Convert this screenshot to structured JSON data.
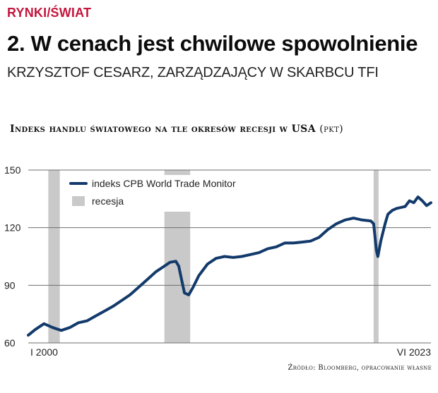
{
  "section": "RYNKI/ŚWIAT",
  "headline": "2. W cenach jest chwilowe spowolnienie",
  "author": "KRZYSZTOF CESARZ, ZARZĄDZAJĄCY W SKARBCU TFI",
  "source": "Źródło: Bloomberg, opracowanie własne",
  "chart_data": {
    "type": "line",
    "title": "Indeks handlu światowego na tle okresów recesji w USA",
    "unit": "(pkt)",
    "x_start": "2000-01",
    "x_end": "2023-06",
    "x_tick_labels": [
      "I 2000",
      "VI 2023"
    ],
    "y_ticks": [
      60,
      90,
      120,
      150
    ],
    "ylim": [
      60,
      150
    ],
    "grid": true,
    "legend_position": "top-left",
    "colors": {
      "series": "#123a6b",
      "recession": "#c9c9c9",
      "grid": "#6e6e6e"
    },
    "recessions": [
      {
        "name": "recesja",
        "start": "2001-03",
        "end": "2001-11"
      },
      {
        "name": "recesja",
        "start": "2007-12",
        "end": "2009-06"
      },
      {
        "name": "recesja",
        "start": "2020-02",
        "end": "2020-04"
      }
    ],
    "series": [
      {
        "name": "indeks CPB World Trade Monitor",
        "points": [
          [
            "2000-01",
            64
          ],
          [
            "2000-06",
            67
          ],
          [
            "2000-12",
            70
          ],
          [
            "2001-06",
            68
          ],
          [
            "2001-12",
            66.5
          ],
          [
            "2002-06",
            68
          ],
          [
            "2002-12",
            70.5
          ],
          [
            "2003-06",
            71.5
          ],
          [
            "2003-12",
            74
          ],
          [
            "2004-06",
            76.5
          ],
          [
            "2004-12",
            79
          ],
          [
            "2005-06",
            82
          ],
          [
            "2005-12",
            85
          ],
          [
            "2006-06",
            89
          ],
          [
            "2006-12",
            93
          ],
          [
            "2007-06",
            97
          ],
          [
            "2007-12",
            100
          ],
          [
            "2008-04",
            102
          ],
          [
            "2008-08",
            102.5
          ],
          [
            "2008-10",
            100
          ],
          [
            "2008-12",
            93
          ],
          [
            "2009-02",
            86
          ],
          [
            "2009-05",
            85
          ],
          [
            "2009-08",
            89
          ],
          [
            "2009-12",
            95
          ],
          [
            "2010-06",
            101
          ],
          [
            "2010-12",
            104
          ],
          [
            "2011-06",
            105
          ],
          [
            "2011-12",
            104.5
          ],
          [
            "2012-06",
            105
          ],
          [
            "2012-12",
            106
          ],
          [
            "2013-06",
            107
          ],
          [
            "2013-12",
            109
          ],
          [
            "2014-06",
            110
          ],
          [
            "2014-12",
            112
          ],
          [
            "2015-06",
            112
          ],
          [
            "2015-12",
            112.5
          ],
          [
            "2016-06",
            113
          ],
          [
            "2016-12",
            115
          ],
          [
            "2017-06",
            119
          ],
          [
            "2017-12",
            122
          ],
          [
            "2018-06",
            124
          ],
          [
            "2018-12",
            125
          ],
          [
            "2019-06",
            124
          ],
          [
            "2019-12",
            123.5
          ],
          [
            "2020-02",
            122
          ],
          [
            "2020-04",
            108
          ],
          [
            "2020-05",
            105
          ],
          [
            "2020-07",
            113
          ],
          [
            "2020-10",
            122
          ],
          [
            "2020-12",
            127
          ],
          [
            "2021-03",
            129
          ],
          [
            "2021-06",
            130
          ],
          [
            "2021-12",
            131
          ],
          [
            "2022-03",
            134
          ],
          [
            "2022-06",
            133
          ],
          [
            "2022-09",
            136
          ],
          [
            "2022-12",
            134
          ],
          [
            "2023-03",
            131.5
          ],
          [
            "2023-06",
            133
          ]
        ]
      },
      {
        "name": "recesja",
        "kind": "band"
      }
    ]
  }
}
